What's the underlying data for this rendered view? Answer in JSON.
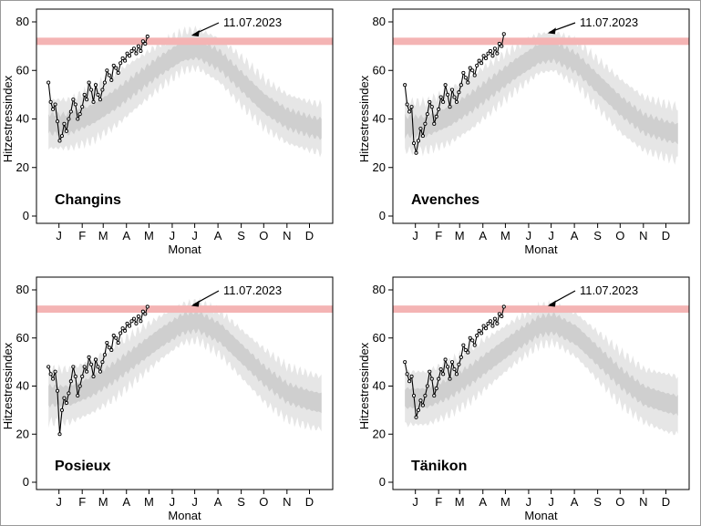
{
  "chart_data": {
    "type": "line",
    "shared": {
      "ylabel": "Hitzestressindex",
      "xlabel": "Monat",
      "month_labels": [
        "J",
        "F",
        "M",
        "A",
        "M",
        "J",
        "J",
        "A",
        "S",
        "O",
        "N",
        "D"
      ],
      "ylim": [
        0,
        80
      ],
      "yticks": [
        0,
        20,
        40,
        60,
        80
      ],
      "xlim": [
        -15,
        380
      ],
      "threshold_value": 72,
      "threshold_color": "#f4b4b4",
      "band_outer_color": "#e6e6e6",
      "band_inner_color": "#cfcfcf",
      "line_color": "#000000",
      "annotation": "11.07.2023",
      "annotation_day": 192
    },
    "panels": [
      {
        "station": "Changins",
        "observed_2023": {
          "start_day": 1,
          "step": 3,
          "values": [
            55,
            47,
            44,
            46,
            39,
            31,
            33,
            38,
            35,
            40,
            43,
            48,
            46,
            40,
            42,
            45,
            50,
            48,
            55,
            52,
            47,
            54,
            50,
            48,
            52,
            55,
            60,
            58,
            56,
            62,
            61,
            59,
            63,
            65,
            64,
            67,
            66,
            68,
            69,
            67,
            70,
            68,
            72,
            71,
            74
          ]
        },
        "climatology": {
          "days": [
            1,
            30,
            60,
            90,
            120,
            150,
            180,
            200,
            230,
            260,
            290,
            320,
            350,
            365
          ],
          "mean": [
            38,
            38,
            42,
            48,
            55,
            62,
            68,
            69,
            64,
            55,
            46,
            40,
            37,
            36
          ],
          "inner_half_width": [
            4,
            4,
            4,
            4,
            4,
            4,
            4,
            4,
            4,
            4,
            4,
            4,
            4,
            4
          ],
          "outer_half_width": [
            10,
            10,
            11,
            11,
            10,
            9,
            8,
            8,
            9,
            10,
            10,
            10,
            10,
            10
          ]
        }
      },
      {
        "station": "Avenches",
        "observed_2023": {
          "start_day": 1,
          "step": 3,
          "values": [
            54,
            46,
            43,
            45,
            30,
            26,
            31,
            36,
            33,
            38,
            42,
            47,
            45,
            38,
            41,
            44,
            49,
            47,
            54,
            50,
            45,
            52,
            49,
            47,
            51,
            54,
            59,
            57,
            55,
            61,
            60,
            58,
            62,
            64,
            63,
            66,
            65,
            67,
            68,
            66,
            69,
            67,
            71,
            70,
            75
          ]
        },
        "climatology": {
          "days": [
            1,
            30,
            60,
            90,
            120,
            150,
            180,
            200,
            230,
            260,
            290,
            320,
            350,
            365
          ],
          "mean": [
            37,
            37,
            41,
            47,
            54,
            61,
            67,
            68,
            63,
            54,
            45,
            38,
            35,
            34
          ],
          "inner_half_width": [
            4,
            4,
            4,
            4,
            4,
            4,
            4,
            4,
            4,
            4,
            4,
            4,
            4,
            4
          ],
          "outer_half_width": [
            10,
            10,
            11,
            11,
            10,
            9,
            8,
            8,
            9,
            10,
            11,
            11,
            11,
            11
          ]
        }
      },
      {
        "station": "Posieux",
        "observed_2023": {
          "start_day": 1,
          "step": 3,
          "values": [
            48,
            45,
            43,
            46,
            38,
            20,
            30,
            35,
            33,
            37,
            42,
            48,
            44,
            36,
            40,
            44,
            48,
            46,
            52,
            49,
            44,
            51,
            48,
            46,
            50,
            53,
            58,
            56,
            55,
            61,
            60,
            58,
            62,
            64,
            63,
            66,
            65,
            67,
            68,
            66,
            69,
            67,
            71,
            70,
            73
          ]
        },
        "climatology": {
          "days": [
            1,
            30,
            60,
            90,
            120,
            150,
            180,
            200,
            230,
            260,
            290,
            320,
            350,
            365
          ],
          "mean": [
            36,
            36,
            40,
            46,
            53,
            60,
            66,
            67,
            62,
            53,
            44,
            37,
            34,
            33
          ],
          "inner_half_width": [
            4,
            4,
            4,
            4,
            4,
            4,
            4,
            4,
            4,
            4,
            4,
            4,
            4,
            4
          ],
          "outer_half_width": [
            11,
            11,
            11,
            11,
            10,
            9,
            8,
            8,
            9,
            10,
            11,
            11,
            11,
            11
          ]
        }
      },
      {
        "station": "Tänikon",
        "observed_2023": {
          "start_day": 1,
          "step": 3,
          "values": [
            50,
            45,
            42,
            44,
            36,
            27,
            30,
            34,
            32,
            36,
            40,
            46,
            43,
            36,
            39,
            43,
            47,
            45,
            51,
            48,
            43,
            50,
            47,
            45,
            49,
            52,
            57,
            55,
            54,
            60,
            59,
            57,
            61,
            63,
            62,
            65,
            64,
            66,
            67,
            65,
            68,
            66,
            70,
            69,
            73
          ]
        },
        "climatology": {
          "days": [
            1,
            30,
            60,
            90,
            120,
            150,
            180,
            200,
            230,
            260,
            290,
            320,
            350,
            365
          ],
          "mean": [
            35,
            35,
            39,
            45,
            52,
            59,
            65,
            66,
            61,
            52,
            43,
            36,
            33,
            32
          ],
          "inner_half_width": [
            4,
            4,
            4,
            4,
            4,
            4,
            4,
            4,
            4,
            4,
            4,
            4,
            4,
            4
          ],
          "outer_half_width": [
            11,
            11,
            11,
            11,
            10,
            9,
            8,
            8,
            9,
            10,
            11,
            11,
            12,
            12
          ]
        }
      }
    ]
  }
}
